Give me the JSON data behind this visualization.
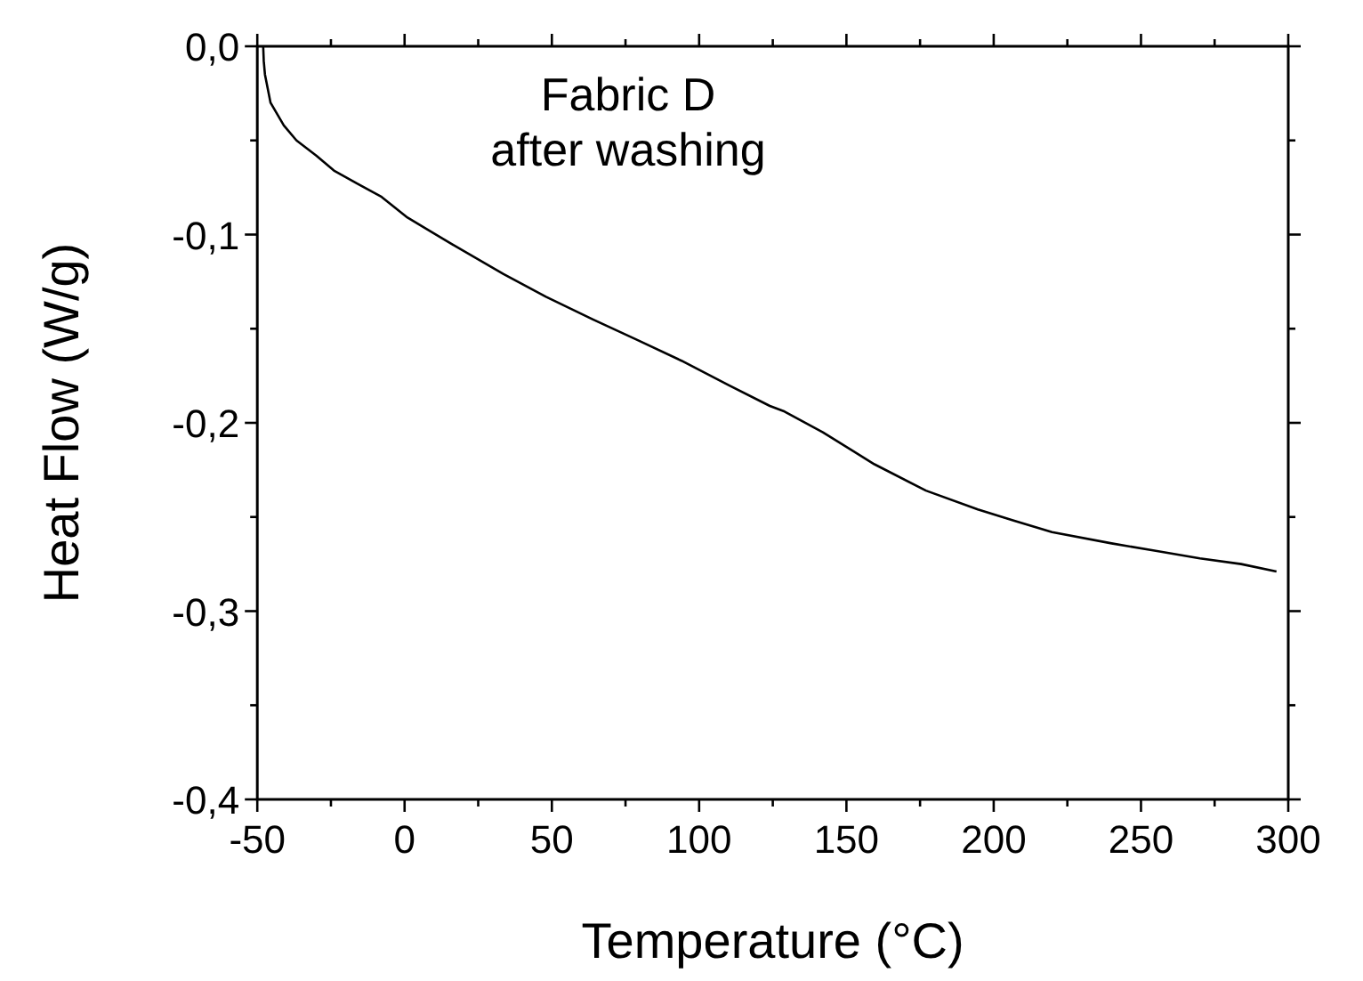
{
  "chart_data": {
    "type": "line",
    "title": "Fabric D\nafter washing",
    "xlabel": "Temperature (°C)",
    "ylabel": "Heat Flow (W/g)",
    "x": [
      -48,
      -47.8,
      -47.4,
      -45.5,
      -41,
      -36.7,
      -30,
      -24,
      -16,
      -7.8,
      1,
      16,
      33.6,
      48,
      63.8,
      79,
      94,
      110,
      124,
      129,
      142,
      159.5,
      177,
      194.6,
      207,
      219.8,
      240,
      255,
      270,
      284,
      296
    ],
    "series": [
      {
        "color": "#000000",
        "values": [
          0,
          -0.008,
          -0.015,
          -0.03,
          -0.042,
          -0.05,
          -0.058,
          -0.066,
          -0.073,
          -0.08,
          -0.091,
          -0.105,
          -0.121,
          -0.133,
          -0.145,
          -0.156,
          -0.167,
          -0.18,
          -0.191,
          -0.194,
          -0.205,
          -0.222,
          -0.236,
          -0.246,
          -0.252,
          -0.258,
          -0.264,
          -0.268,
          -0.272,
          -0.275,
          -0.279
        ]
      }
    ],
    "xlim": [
      -50,
      300
    ],
    "ylim": [
      -0.4,
      0
    ],
    "xticks": [
      -50,
      {
        "value": -25,
        "label": null
      },
      0,
      {
        "value": 25,
        "label": null
      },
      50,
      {
        "value": 75,
        "label": null
      },
      100,
      {
        "value": 125,
        "label": null
      },
      150,
      {
        "value": 175,
        "label": null
      },
      200,
      {
        "value": 225,
        "label": null
      },
      250,
      {
        "value": 275,
        "label": null
      },
      300
    ],
    "yticks": [
      {
        "value": -0.4,
        "label": "-0,4"
      },
      {
        "value": -0.35,
        "label": null
      },
      {
        "value": -0.3,
        "label": "-0,3"
      },
      {
        "value": -0.25,
        "label": null
      },
      {
        "value": -0.2,
        "label": "-0,2"
      },
      {
        "value": -0.15,
        "label": null
      },
      {
        "value": -0.1,
        "label": "-0,1"
      },
      {
        "value": -0.05,
        "label": null
      },
      {
        "value": 0,
        "label": "0,0"
      }
    ],
    "grid": false,
    "marker": "none",
    "line_style": "solid"
  }
}
